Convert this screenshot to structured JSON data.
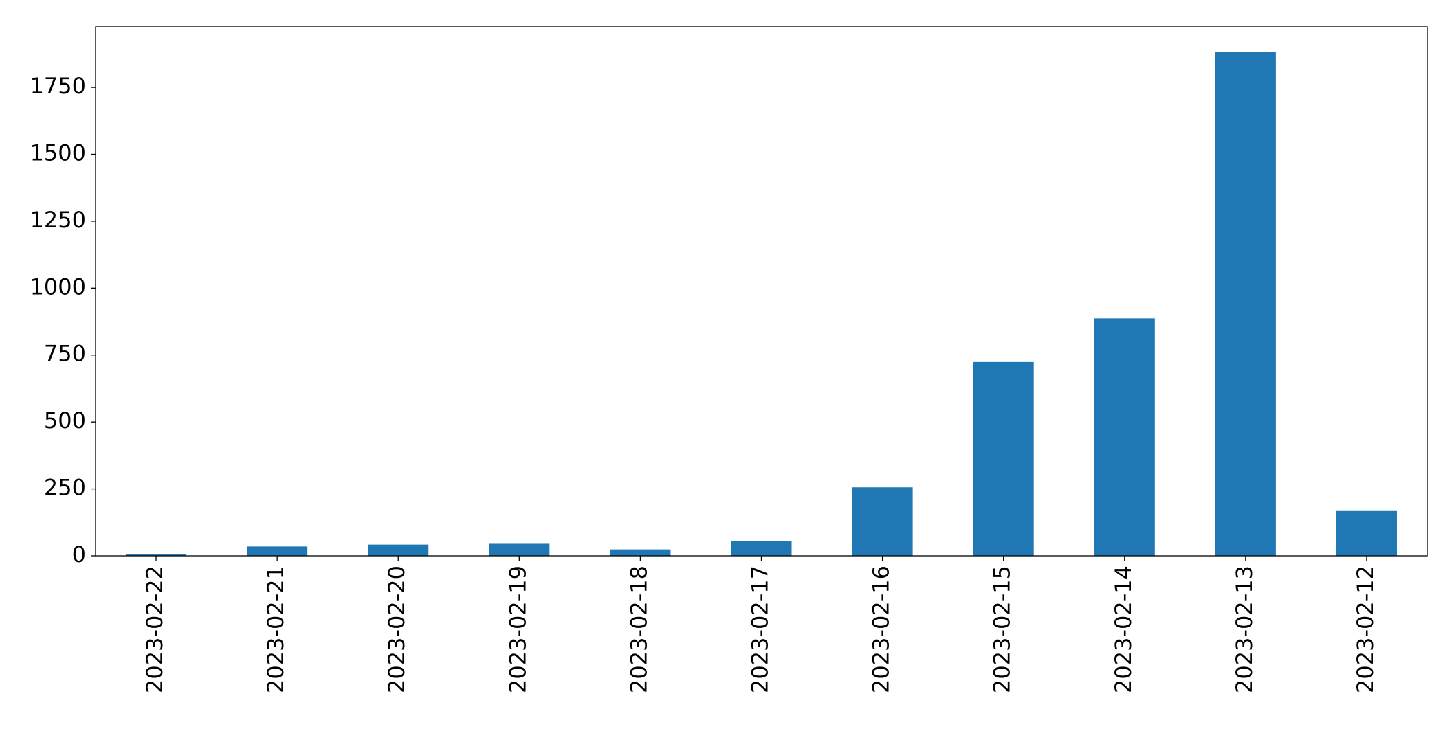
{
  "chart_data": {
    "type": "bar",
    "categories": [
      "2023-02-22",
      "2023-02-21",
      "2023-02-20",
      "2023-02-19",
      "2023-02-18",
      "2023-02-17",
      "2023-02-16",
      "2023-02-15",
      "2023-02-14",
      "2023-02-13",
      "2023-02-12"
    ],
    "values": [
      5,
      35,
      42,
      45,
      24,
      55,
      256,
      724,
      887,
      1882,
      170
    ],
    "color": "#1f77b4",
    "ylim": [
      0,
      1976
    ],
    "yticks": [
      0,
      250,
      500,
      750,
      1000,
      1250,
      1500,
      1750
    ],
    "grid": false
  }
}
